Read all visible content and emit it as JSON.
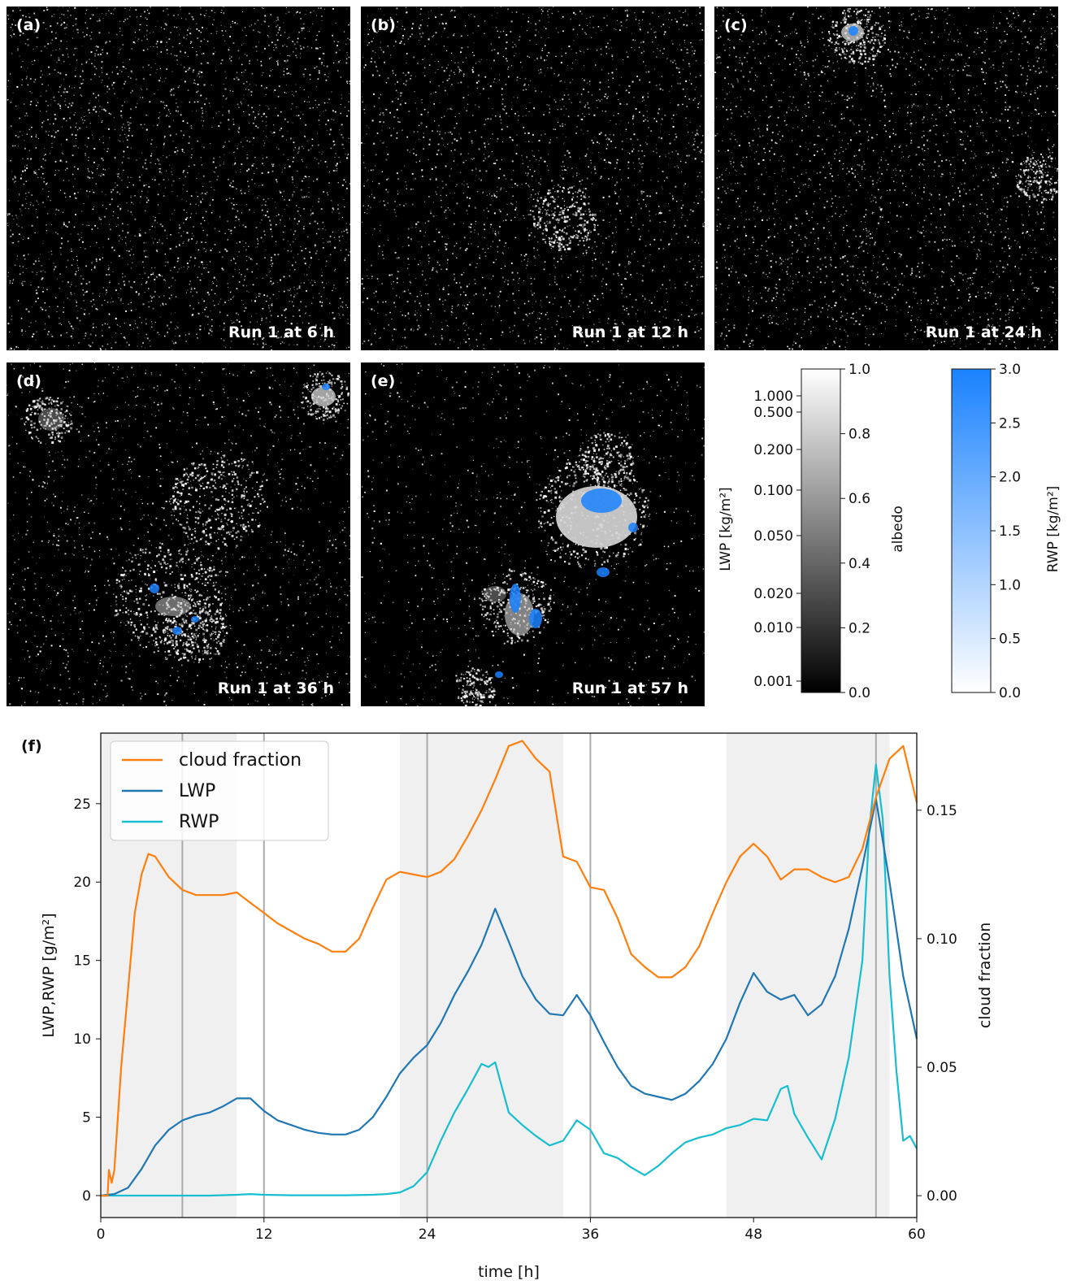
{
  "panels": [
    {
      "label": "(a)",
      "caption": "Run 1 at 6 h"
    },
    {
      "label": "(b)",
      "caption": "Run 1 at 12 h"
    },
    {
      "label": "(c)",
      "caption": "Run 1 at 24 h"
    },
    {
      "label": "(d)",
      "caption": "Run 1 at 36 h"
    },
    {
      "label": "(e)",
      "caption": "Run 1 at 57 h"
    }
  ],
  "colorbars": {
    "lwp_label": "LWP [kg/m²]",
    "lwp_ticks": [
      "1.000",
      "0.500",
      "0.200",
      "0.100",
      "0.050",
      "0.020",
      "0.010",
      "0.001"
    ],
    "albedo_label": "albedo",
    "albedo_ticks": [
      "1.0",
      "0.8",
      "0.6",
      "0.4",
      "0.2",
      "0.0"
    ],
    "rwp_label": "RWP [kg/m²]",
    "rwp_ticks": [
      "3.0",
      "2.5",
      "2.0",
      "1.5",
      "1.0",
      "0.5",
      "0.0"
    ],
    "rwp_color": "#1a82ff"
  },
  "chart_data": {
    "type": "line",
    "panel_label": "(f)",
    "xlabel": "time [h]",
    "ylabel": "LWP,RWP [g/m²]",
    "y2label": "cloud fraction",
    "xlim": [
      0,
      60
    ],
    "ylim": [
      -1.4,
      29.5
    ],
    "y2lim": [
      -0.0085,
      0.18
    ],
    "xticks": [
      0,
      12,
      24,
      36,
      48,
      60
    ],
    "yticks": [
      0,
      5,
      10,
      15,
      20,
      25
    ],
    "y2ticks": [
      0.0,
      0.05,
      0.1,
      0.15
    ],
    "y2tick_labels": [
      "0.00",
      "0.05",
      "0.10",
      "0.15"
    ],
    "shaded_intervals": [
      [
        0,
        10
      ],
      [
        22,
        34
      ],
      [
        46,
        58
      ]
    ],
    "vlines": [
      6,
      12,
      24,
      36,
      57
    ],
    "legend": [
      "cloud fraction",
      "LWP",
      "RWP"
    ],
    "legend_position": "upper left",
    "series": [
      {
        "name": "cloud fraction",
        "axis": "right",
        "color": "#ff7f0e",
        "x": [
          0,
          0.5,
          0.6,
          0.8,
          1,
          1.5,
          2,
          2.5,
          3,
          3.5,
          4,
          5,
          6,
          7,
          8,
          9,
          10,
          11,
          12,
          13,
          14,
          15,
          16,
          17,
          18,
          19,
          20,
          21,
          22,
          23,
          24,
          25,
          26,
          27,
          28,
          29,
          30,
          31,
          32,
          33,
          34,
          35,
          36,
          37,
          38,
          39,
          40,
          41,
          42,
          43,
          44,
          45,
          46,
          47,
          48,
          49,
          50,
          51,
          52,
          53,
          54,
          55,
          56,
          57,
          58,
          59,
          60
        ],
        "y": [
          0,
          0,
          0.01,
          0.005,
          0.01,
          0.05,
          0.08,
          0.11,
          0.125,
          0.133,
          0.132,
          0.124,
          0.119,
          0.117,
          0.117,
          0.117,
          0.118,
          0.114,
          0.11,
          0.106,
          0.103,
          0.1,
          0.098,
          0.095,
          0.095,
          0.1,
          0.112,
          0.123,
          0.126,
          0.125,
          0.124,
          0.126,
          0.131,
          0.14,
          0.15,
          0.162,
          0.175,
          0.177,
          0.17,
          0.165,
          0.132,
          0.13,
          0.12,
          0.119,
          0.108,
          0.094,
          0.089,
          0.085,
          0.085,
          0.089,
          0.097,
          0.11,
          0.122,
          0.132,
          0.137,
          0.132,
          0.123,
          0.127,
          0.127,
          0.124,
          0.122,
          0.124,
          0.135,
          0.155,
          0.17,
          0.175,
          0.153
        ]
      },
      {
        "name": "LWP",
        "axis": "left",
        "color": "#1f77b4",
        "x": [
          0,
          1,
          2,
          3,
          4,
          5,
          6,
          7,
          8,
          9,
          10,
          11,
          12,
          13,
          14,
          15,
          16,
          17,
          18,
          19,
          20,
          21,
          22,
          23,
          24,
          25,
          26,
          27,
          28,
          29,
          30,
          31,
          32,
          33,
          34,
          35,
          36,
          37,
          38,
          39,
          40,
          41,
          42,
          43,
          44,
          45,
          46,
          47,
          48,
          49,
          50,
          51,
          52,
          53,
          54,
          55,
          56,
          57,
          58,
          59,
          60
        ],
        "y": [
          0,
          0.1,
          0.5,
          1.7,
          3.2,
          4.2,
          4.8,
          5.1,
          5.3,
          5.7,
          6.2,
          6.2,
          5.4,
          4.8,
          4.5,
          4.2,
          4,
          3.9,
          3.9,
          4.2,
          5,
          6.3,
          7.8,
          8.8,
          9.6,
          11,
          12.8,
          14.3,
          16,
          18.3,
          16.2,
          14,
          12.5,
          11.6,
          11.5,
          12.8,
          11.5,
          9.8,
          8.2,
          7,
          6.5,
          6.3,
          6.1,
          6.5,
          7.3,
          8.4,
          10,
          12.3,
          14.2,
          13,
          12.5,
          12.8,
          11.5,
          12.2,
          14,
          17,
          21,
          25.3,
          20,
          14,
          10
        ]
      },
      {
        "name": "RWP",
        "axis": "left",
        "color": "#17becf",
        "x": [
          0,
          2,
          4,
          6,
          8,
          10,
          11,
          12,
          14,
          16,
          18,
          20,
          21,
          22,
          23,
          24,
          25,
          26,
          27,
          28,
          28.5,
          29,
          30,
          31,
          32,
          33,
          34,
          35,
          36,
          37,
          38,
          39,
          40,
          41,
          42,
          43,
          44,
          45,
          46,
          47,
          48,
          49,
          50,
          50.5,
          51,
          52,
          53,
          54,
          55,
          56,
          56.5,
          57,
          57.5,
          58,
          58.5,
          59,
          59.5,
          60
        ],
        "y": [
          0,
          0,
          0,
          0,
          0,
          0.05,
          0.1,
          0.05,
          0.02,
          0.02,
          0.02,
          0.05,
          0.1,
          0.2,
          0.6,
          1.5,
          3.5,
          5.3,
          6.8,
          8.4,
          8.2,
          8.5,
          5.3,
          4.5,
          3.8,
          3.2,
          3.5,
          4.8,
          4.2,
          2.7,
          2.4,
          1.8,
          1.3,
          1.9,
          2.7,
          3.4,
          3.7,
          3.9,
          4.3,
          4.5,
          4.9,
          4.8,
          6.8,
          7,
          5.2,
          3.7,
          2.3,
          4.9,
          8.8,
          15,
          23.3,
          27.5,
          24,
          14,
          8,
          3.5,
          3.8,
          3
        ]
      }
    ]
  }
}
